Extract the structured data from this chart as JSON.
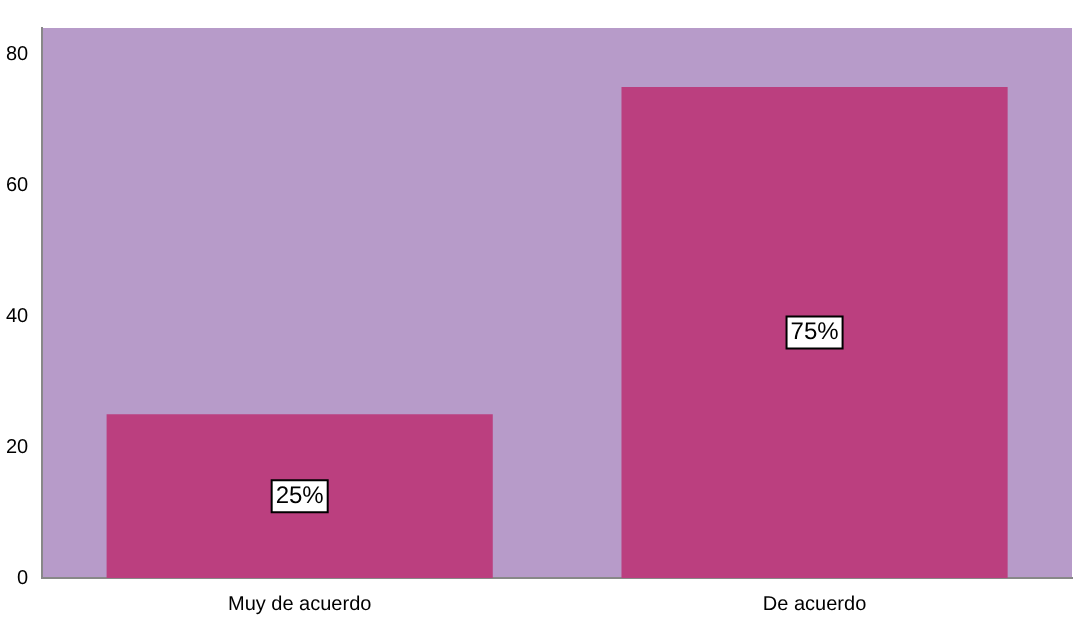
{
  "chart_data": {
    "type": "bar",
    "categories": [
      "Muy de acuerdo",
      "De acuerdo"
    ],
    "values": [
      25,
      75
    ],
    "value_labels": [
      "25%",
      "75%"
    ],
    "color": "#bb3f7f",
    "ylim": [
      0,
      84
    ],
    "yticks": [
      0,
      20,
      40,
      60,
      80
    ],
    "grid": false,
    "legend": false
  }
}
